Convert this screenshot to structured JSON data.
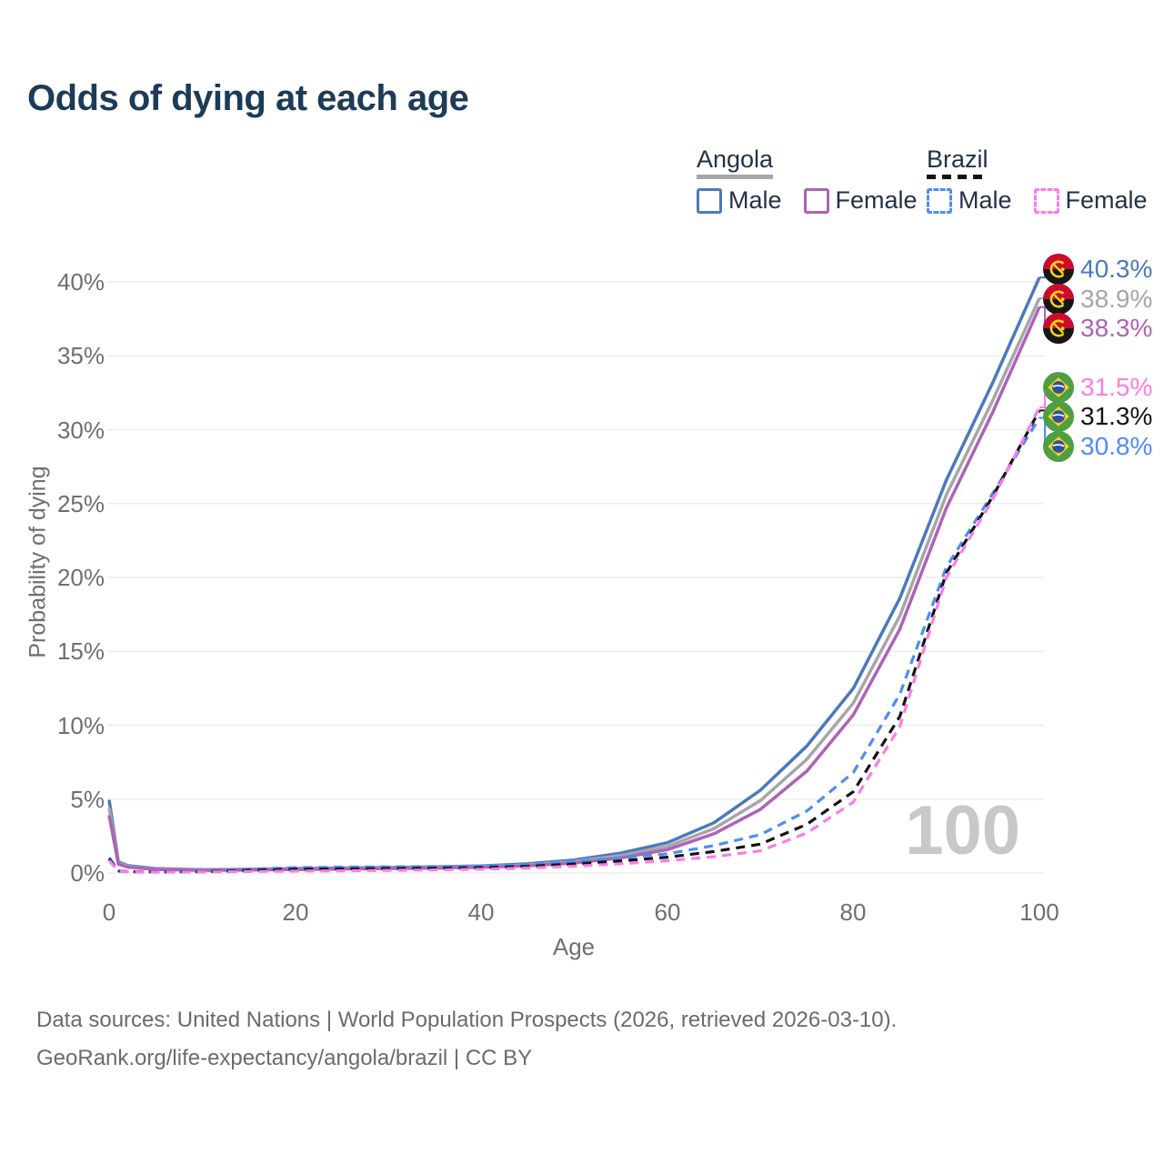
{
  "title": "Odds of dying at each age",
  "watermark": "100",
  "colors": {
    "title": "#1c3b57",
    "legend_text": "#233247",
    "axis_text": "#6f6f6f",
    "grid": "#ececec",
    "footer_text": "#6b6b6b",
    "watermark": "#c8c8c8"
  },
  "legend": {
    "groups": [
      {
        "country": "Angola",
        "line_style": "solid",
        "line_color": "#a6a6a6",
        "items": [
          {
            "label": "Male",
            "color": "#4b79bd",
            "style": "solid"
          },
          {
            "label": "Female",
            "color": "#ae62b8",
            "style": "solid"
          }
        ]
      },
      {
        "country": "Brazil",
        "line_style": "dashed",
        "line_color": "#141414",
        "items": [
          {
            "label": "Male",
            "color": "#4e8cf8",
            "style": "dashed"
          },
          {
            "label": "Female",
            "color": "#fb7ce8",
            "style": "dashed"
          }
        ]
      }
    ]
  },
  "flags": {
    "angola": {
      "red": "#cf0a2c",
      "black": "#171717",
      "yellow": "#f9d616"
    },
    "brazil": {
      "green": "#4f9e43",
      "yellow": "#f7d11e",
      "blue": "#2a52a0",
      "white": "#ffffff"
    }
  },
  "footer": {
    "line1": "Data sources: United Nations | World Population Prospects (2026, retrieved 2026-03-10).",
    "line2": "GeoRank.org/life-expectancy/angola/brazil | CC BY"
  },
  "chart_data": {
    "type": "line",
    "title": "Odds of dying at each age",
    "xlabel": "Age",
    "ylabel": "Probability of dying",
    "xlim": [
      0,
      100
    ],
    "ylim": [
      0,
      40
    ],
    "grid": true,
    "legend_position": "top-right",
    "x_ticks": [
      0,
      20,
      40,
      60,
      80,
      100
    ],
    "x_tick_labels": [
      "0",
      "20",
      "40",
      "60",
      "80",
      "100"
    ],
    "y_ticks": [
      0,
      5,
      10,
      15,
      20,
      25,
      30,
      35,
      40
    ],
    "y_tick_labels": [
      "0%",
      "5%",
      "10%",
      "15%",
      "20%",
      "25%",
      "30%",
      "35%",
      "40%"
    ],
    "x": [
      0,
      1,
      2,
      5,
      10,
      15,
      20,
      25,
      30,
      35,
      40,
      45,
      50,
      55,
      60,
      65,
      70,
      75,
      80,
      85,
      90,
      95,
      100
    ],
    "series": [
      {
        "name": "Angola Male",
        "country": "Angola",
        "sex": "male",
        "color": "#4b79bd",
        "dashed": false,
        "end_label": "40.3%",
        "values": [
          4.95,
          0.75,
          0.5,
          0.3,
          0.22,
          0.25,
          0.3,
          0.34,
          0.37,
          0.41,
          0.48,
          0.62,
          0.88,
          1.35,
          2.05,
          3.4,
          5.6,
          8.6,
          12.5,
          18.6,
          26.6,
          33.2,
          40.3
        ]
      },
      {
        "name": "Angola Both sexes",
        "country": "Angola",
        "sex": "both",
        "color": "#a6a6a6",
        "dashed": false,
        "end_label": "38.9%",
        "values": [
          4.4,
          0.68,
          0.45,
          0.27,
          0.2,
          0.22,
          0.27,
          0.3,
          0.33,
          0.37,
          0.43,
          0.55,
          0.78,
          1.18,
          1.8,
          3.0,
          4.9,
          7.7,
          11.5,
          17.4,
          25.6,
          32.0,
          38.9
        ]
      },
      {
        "name": "Angola Female",
        "country": "Angola",
        "sex": "female",
        "color": "#ae62b8",
        "dashed": false,
        "end_label": "38.3%",
        "values": [
          3.9,
          0.6,
          0.4,
          0.24,
          0.18,
          0.2,
          0.24,
          0.27,
          0.3,
          0.33,
          0.39,
          0.49,
          0.68,
          1.02,
          1.58,
          2.65,
          4.3,
          6.9,
          10.7,
          16.5,
          24.7,
          31.2,
          38.3
        ]
      },
      {
        "name": "Brazil Male",
        "country": "Brazil",
        "sex": "male",
        "color": "#4e8cf8",
        "dashed": true,
        "end_label": "30.8%",
        "values": [
          1.05,
          0.15,
          0.1,
          0.08,
          0.1,
          0.26,
          0.36,
          0.4,
          0.42,
          0.44,
          0.47,
          0.57,
          0.77,
          1.02,
          1.3,
          1.85,
          2.6,
          4.2,
          6.8,
          12.1,
          20.7,
          25.7,
          30.8
        ]
      },
      {
        "name": "Brazil Both sexes",
        "country": "Brazil",
        "sex": "both",
        "color": "#141414",
        "dashed": true,
        "end_label": "31.3%",
        "values": [
          0.95,
          0.13,
          0.09,
          0.07,
          0.08,
          0.18,
          0.25,
          0.28,
          0.3,
          0.32,
          0.36,
          0.45,
          0.61,
          0.82,
          1.07,
          1.45,
          1.95,
          3.3,
          5.5,
          10.6,
          20.3,
          25.5,
          31.3
        ]
      },
      {
        "name": "Brazil Female",
        "country": "Brazil",
        "sex": "female",
        "color": "#fb7ce8",
        "dashed": true,
        "end_label": "31.5%",
        "values": [
          0.85,
          0.12,
          0.08,
          0.06,
          0.07,
          0.1,
          0.13,
          0.15,
          0.18,
          0.21,
          0.26,
          0.34,
          0.46,
          0.63,
          0.83,
          1.1,
          1.5,
          2.7,
          4.8,
          9.9,
          20.0,
          25.3,
          31.5
        ]
      }
    ]
  }
}
